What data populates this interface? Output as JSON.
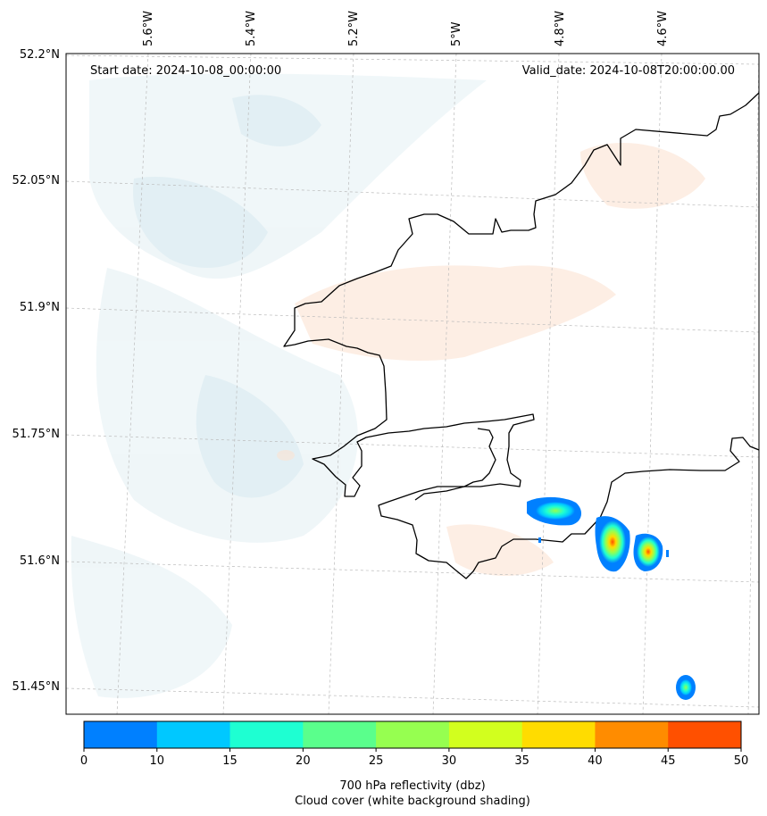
{
  "header": {
    "start_date": "Start date: 2024-10-08_00:00:00",
    "valid_date": "Valid_date: 2024-10-08T20:00:00.00"
  },
  "axes": {
    "lon_labels": [
      "5.6°W",
      "5.4°W",
      "5.2°W",
      "5°W",
      "4.8°W",
      "4.6°W"
    ],
    "lat_labels": [
      "52.2°N",
      "52.05°N",
      "51.9°N",
      "51.75°N",
      "51.6°N",
      "51.45°N"
    ]
  },
  "colorbar": {
    "ticks": [
      "0",
      "10",
      "15",
      "20",
      "25",
      "30",
      "35",
      "40",
      "45",
      "50"
    ],
    "colors": [
      "#0080ff",
      "#00c8ff",
      "#1effd2",
      "#5aff8c",
      "#96ff50",
      "#d2ff1e",
      "#ffdc00",
      "#ff8c00",
      "#ff5000"
    ],
    "label_line1": "700 hPa reflectivity (dbz)",
    "label_line2": "Cloud cover (white background shading)"
  }
}
